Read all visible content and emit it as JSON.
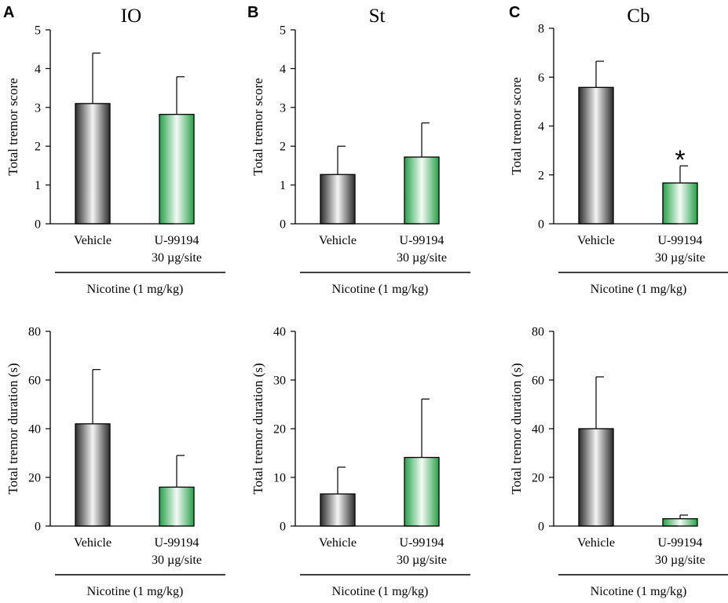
{
  "panels": [
    {
      "letter": "A",
      "title": "IO"
    },
    {
      "letter": "B",
      "title": "St"
    },
    {
      "letter": "C",
      "title": "Cb"
    }
  ],
  "colors": {
    "vehicle_edge": "#2b2b2b",
    "vehicle_center": "#f4f4f4",
    "u99194_edge": "#23a148",
    "u99194_center": "#f4fbf5",
    "axis": "#000000"
  },
  "chart_data": [
    {
      "id": "A-score",
      "type": "bar",
      "panel": "A",
      "ylabel": "Total tremor score",
      "ylim": [
        0,
        5
      ],
      "yticks": [
        0,
        1,
        2,
        3,
        4,
        5
      ],
      "categories": [
        "Vehicle",
        "U-99194\n30 µg/site"
      ],
      "values": [
        3.1,
        2.82
      ],
      "errors": [
        1.3,
        0.97
      ],
      "group_label": "Nicotine (1 mg/kg)",
      "significance": [
        "",
        ""
      ]
    },
    {
      "id": "B-score",
      "type": "bar",
      "panel": "B",
      "ylabel": "Total tremor score",
      "ylim": [
        0,
        5
      ],
      "yticks": [
        0,
        1,
        2,
        3,
        4,
        5
      ],
      "categories": [
        "Vehicle",
        "U-99194\n30 µg/site"
      ],
      "values": [
        1.27,
        1.72
      ],
      "errors": [
        0.73,
        0.88
      ],
      "group_label": "Nicotine (1 mg/kg)",
      "significance": [
        "",
        ""
      ]
    },
    {
      "id": "C-score",
      "type": "bar",
      "panel": "C",
      "ylabel": "Total tremor score",
      "ylim": [
        0,
        8
      ],
      "yticks": [
        0,
        2,
        4,
        6,
        8
      ],
      "categories": [
        "Vehicle",
        "U-99194\n30 µg/site"
      ],
      "values": [
        5.58,
        1.67
      ],
      "errors": [
        1.07,
        0.7
      ],
      "group_label": "Nicotine (1 mg/kg)",
      "significance": [
        "",
        "*"
      ]
    },
    {
      "id": "A-duration",
      "type": "bar",
      "panel": "A",
      "ylabel": "Total tremor duration (s)",
      "ylim": [
        0,
        80
      ],
      "yticks": [
        0,
        20,
        40,
        60,
        80
      ],
      "categories": [
        "Vehicle",
        "U-99194\n30 µg/site"
      ],
      "values": [
        42,
        16
      ],
      "errors": [
        22.3,
        13
      ],
      "group_label": "Nicotine (1 mg/kg)",
      "significance": [
        "",
        ""
      ]
    },
    {
      "id": "B-duration",
      "type": "bar",
      "panel": "B",
      "ylabel": "Total tremor duration (s)",
      "ylim": [
        0,
        40
      ],
      "yticks": [
        0,
        10,
        20,
        30,
        40
      ],
      "categories": [
        "Vehicle",
        "U-99194\n30 µg/site"
      ],
      "values": [
        6.6,
        14.1
      ],
      "errors": [
        5.5,
        12
      ],
      "group_label": "Nicotine (1 mg/kg)",
      "significance": [
        "",
        ""
      ]
    },
    {
      "id": "C-duration",
      "type": "bar",
      "panel": "C",
      "ylabel": "Total tremor duration (s)",
      "ylim": [
        0,
        80
      ],
      "yticks": [
        0,
        20,
        40,
        60,
        80
      ],
      "categories": [
        "Vehicle",
        "U-99194\n30 µg/site"
      ],
      "values": [
        40,
        3
      ],
      "errors": [
        21.3,
        1.5
      ],
      "group_label": "Nicotine (1 mg/kg)",
      "significance": [
        "",
        ""
      ]
    }
  ]
}
